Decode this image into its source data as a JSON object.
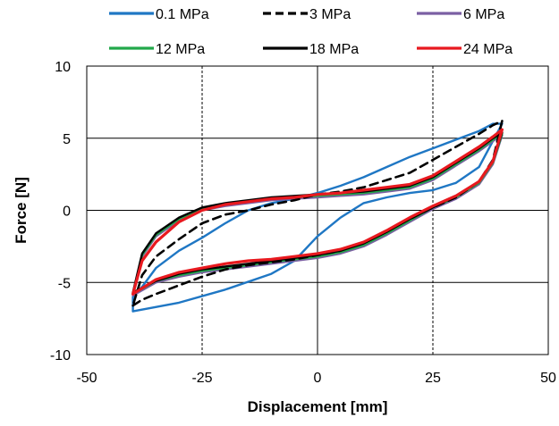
{
  "chart_data": {
    "type": "line",
    "title": "",
    "xlabel": "Displacement [mm]",
    "ylabel": "Force [N]",
    "xlim": [
      -50,
      50
    ],
    "ylim": [
      -10,
      10
    ],
    "xticks": [
      -50,
      -25,
      0,
      25,
      50
    ],
    "yticks": [
      -10,
      -5,
      0,
      5,
      10
    ],
    "x_tick_labels": [
      "-50",
      "-25",
      "0",
      "25",
      "50"
    ],
    "y_tick_labels": [
      "-10",
      "-5",
      "0",
      "5",
      "10"
    ],
    "grid": "solid horizontal at y=-5,0,5; dashed vertical at x=-25,25; solid vertical at x=0",
    "legend_position": "top",
    "series": [
      {
        "name": "0.1 MPa",
        "color": "#1f77c4",
        "dash": "solid",
        "x": [
          -40,
          -30,
          -20,
          -10,
          -5,
          0,
          5,
          10,
          15,
          20,
          25,
          30,
          35,
          40,
          40,
          38,
          35,
          30,
          25,
          20,
          15,
          10,
          5,
          0,
          -5,
          -10,
          -15,
          -20,
          -25,
          -30,
          -35,
          -38,
          -40,
          -40
        ],
        "y": [
          -7.0,
          -6.4,
          -5.5,
          -4.4,
          -3.5,
          -1.8,
          -0.5,
          0.5,
          0.9,
          1.2,
          1.4,
          1.9,
          3.0,
          6.0,
          6.0,
          6.0,
          5.5,
          4.9,
          4.3,
          3.7,
          3.0,
          2.3,
          1.7,
          1.2,
          0.8,
          0.5,
          0.0,
          -0.9,
          -1.9,
          -2.8,
          -4.0,
          -5.3,
          -6.0,
          -7.0
        ]
      },
      {
        "name": "3 MPa",
        "color": "#000000",
        "dash": "dashed",
        "x": [
          -40,
          -38,
          -35,
          -30,
          -25,
          -20,
          -15,
          -10,
          -5,
          0,
          5,
          10,
          15,
          20,
          25,
          30,
          35,
          38,
          40,
          40,
          38,
          35,
          30,
          25,
          20,
          15,
          10,
          5,
          0,
          -5,
          -10,
          -15,
          -20,
          -25,
          -30,
          -35,
          -38,
          -40
        ],
        "y": [
          -6.6,
          -6.2,
          -5.8,
          -5.2,
          -4.6,
          -4.1,
          -3.8,
          -3.6,
          -3.4,
          -3.1,
          -2.8,
          -2.2,
          -1.4,
          -0.6,
          0.2,
          0.9,
          2.0,
          3.5,
          6.2,
          6.2,
          5.9,
          5.3,
          4.4,
          3.5,
          2.6,
          2.1,
          1.6,
          1.3,
          1.1,
          0.7,
          0.4,
          0.0,
          -0.3,
          -0.9,
          -2.0,
          -3.2,
          -4.5,
          -6.6
        ]
      },
      {
        "name": "6 MPa",
        "color": "#7b5fa3",
        "dash": "solid",
        "x": [
          -40,
          -35,
          -30,
          -25,
          -20,
          -15,
          -10,
          -5,
          0,
          5,
          10,
          15,
          20,
          25,
          30,
          35,
          38,
          40,
          40,
          38,
          35,
          30,
          25,
          20,
          15,
          10,
          5,
          0,
          -5,
          -10,
          -15,
          -20,
          -25,
          -30,
          -35,
          -38,
          -40
        ],
        "y": [
          -5.9,
          -5.0,
          -4.6,
          -4.3,
          -4.1,
          -3.9,
          -3.7,
          -3.5,
          -3.3,
          -3.0,
          -2.5,
          -1.7,
          -0.8,
          0.1,
          0.8,
          1.8,
          3.2,
          5.2,
          5.2,
          4.8,
          4.1,
          3.1,
          2.1,
          1.5,
          1.3,
          1.1,
          1.0,
          0.9,
          0.8,
          0.7,
          0.5,
          0.3,
          0.0,
          -0.7,
          -1.8,
          -3.2,
          -5.9
        ]
      },
      {
        "name": "12 MPa",
        "color": "#22a84a",
        "dash": "solid",
        "x": [
          -40,
          -35,
          -30,
          -25,
          -20,
          -15,
          -10,
          -5,
          0,
          5,
          10,
          15,
          20,
          25,
          30,
          35,
          38,
          40,
          40,
          38,
          35,
          30,
          25,
          20,
          15,
          10,
          5,
          0,
          -5,
          -10,
          -15,
          -20,
          -25,
          -30,
          -35,
          -38,
          -40
        ],
        "y": [
          -5.8,
          -4.9,
          -4.5,
          -4.2,
          -4.0,
          -3.8,
          -3.6,
          -3.4,
          -3.2,
          -2.9,
          -2.4,
          -1.6,
          -0.7,
          0.2,
          0.9,
          1.9,
          3.3,
          5.3,
          5.3,
          4.9,
          4.2,
          3.2,
          2.2,
          1.6,
          1.4,
          1.2,
          1.1,
          1.0,
          0.9,
          0.8,
          0.6,
          0.4,
          0.1,
          -0.6,
          -1.7,
          -3.1,
          -5.8
        ]
      },
      {
        "name": "18 MPa",
        "color": "#000000",
        "dash": "solid",
        "x": [
          -40,
          -35,
          -30,
          -25,
          -20,
          -15,
          -10,
          -5,
          0,
          5,
          10,
          15,
          20,
          25,
          30,
          35,
          38,
          40,
          40,
          38,
          35,
          30,
          25,
          20,
          15,
          10,
          5,
          0,
          -5,
          -10,
          -15,
          -20,
          -25,
          -30,
          -35,
          -38,
          -40
        ],
        "y": [
          -5.7,
          -4.9,
          -4.4,
          -4.1,
          -3.9,
          -3.7,
          -3.5,
          -3.3,
          -3.1,
          -2.8,
          -2.3,
          -1.5,
          -0.6,
          0.2,
          1.0,
          2.0,
          3.4,
          5.4,
          5.4,
          5.0,
          4.3,
          3.3,
          2.3,
          1.7,
          1.5,
          1.3,
          1.2,
          1.1,
          1.0,
          0.9,
          0.7,
          0.5,
          0.2,
          -0.5,
          -1.6,
          -3.0,
          -5.7
        ]
      },
      {
        "name": "24 MPa",
        "color": "#e8191f",
        "dash": "solid",
        "x": [
          -40,
          -35,
          -30,
          -25,
          -20,
          -15,
          -10,
          -5,
          0,
          5,
          10,
          15,
          20,
          25,
          30,
          35,
          38,
          40,
          40,
          38,
          35,
          30,
          25,
          20,
          15,
          10,
          5,
          0,
          -5,
          -10,
          -15,
          -20,
          -25,
          -30,
          -35,
          -38,
          -40
        ],
        "y": [
          -5.8,
          -4.8,
          -4.3,
          -4.0,
          -3.7,
          -3.5,
          -3.4,
          -3.2,
          -3.0,
          -2.7,
          -2.2,
          -1.4,
          -0.5,
          0.3,
          1.0,
          2.0,
          3.4,
          5.6,
          5.6,
          5.1,
          4.4,
          3.4,
          2.4,
          1.8,
          1.6,
          1.4,
          1.2,
          1.1,
          0.9,
          0.8,
          0.6,
          0.4,
          0.0,
          -0.8,
          -2.2,
          -3.5,
          -5.8
        ]
      }
    ]
  }
}
